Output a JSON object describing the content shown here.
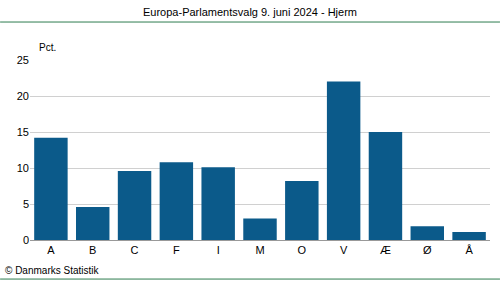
{
  "chart_data": {
    "type": "bar",
    "title": "Europa-Parlamentsvalg 9. juni 2024 - Hjerm",
    "ylabel": "Pct.",
    "source": "© Danmarks Statistik",
    "categories": [
      "A",
      "B",
      "C",
      "F",
      "I",
      "M",
      "O",
      "V",
      "Æ",
      "Ø",
      "Å"
    ],
    "values": [
      14.2,
      4.6,
      9.6,
      10.8,
      10.1,
      3.0,
      8.2,
      22.0,
      15.0,
      1.9,
      1.1
    ],
    "color": "#0b5a8a",
    "ylim": [
      0,
      25
    ],
    "yticks": [
      0,
      5,
      10,
      15,
      20,
      25
    ],
    "grid": true
  }
}
